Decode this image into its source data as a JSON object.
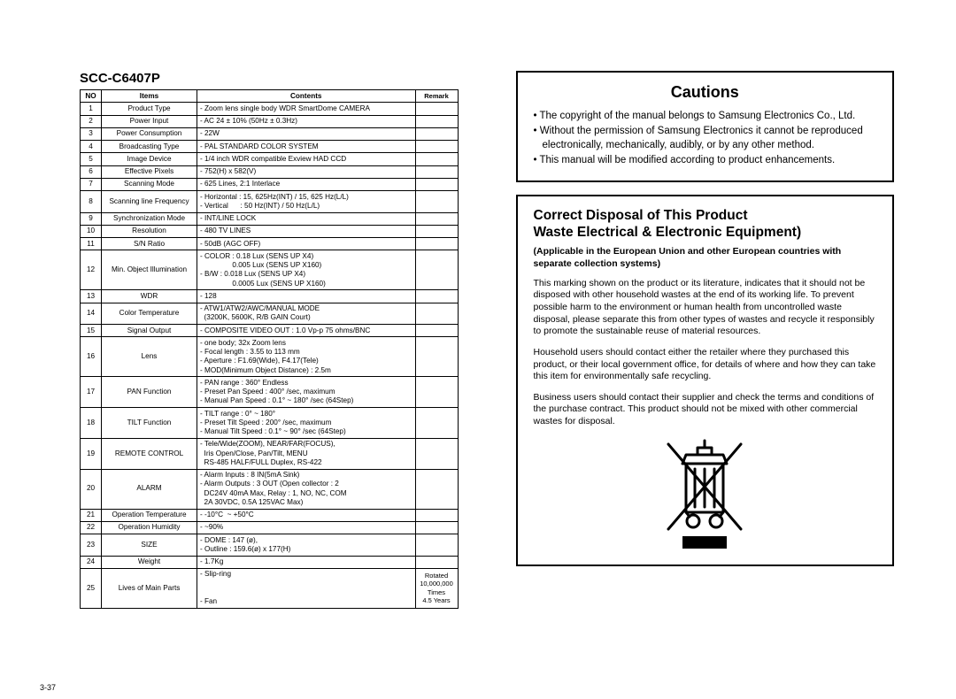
{
  "left": {
    "model": "SCC-C6407P",
    "pageNum": "3-37",
    "headers": {
      "no": "NO",
      "items": "Items",
      "contents": "Contents",
      "remark": "Remark"
    },
    "rows": [
      {
        "no": "1",
        "item": "Product Type",
        "content": "- Zoom lens single body WDR SmartDome CAMERA",
        "remark": ""
      },
      {
        "no": "2",
        "item": "Power Input",
        "content": "- AC 24 ± 10% (50Hz ± 0.3Hz)",
        "remark": ""
      },
      {
        "no": "3",
        "item": "Power Consumption",
        "content": "- 22W",
        "remark": ""
      },
      {
        "no": "4",
        "item": "Broadcasting Type",
        "content": "- PAL STANDARD COLOR SYSTEM",
        "remark": ""
      },
      {
        "no": "5",
        "item": "Image Device",
        "content": "- 1/4 inch WDR compatible Exview HAD CCD",
        "remark": ""
      },
      {
        "no": "6",
        "item": "Effective Pixels",
        "content": "- 752(H) x 582(V)",
        "remark": ""
      },
      {
        "no": "7",
        "item": "Scanning Mode",
        "content": "- 625 Lines, 2:1 Interlace",
        "remark": ""
      },
      {
        "no": "8",
        "item": "Scanning line Frequency",
        "content": "- Horizontal : 15, 625Hz(INT) / 15, 625 Hz(L/L)\n- Vertical      : 50 Hz(INT) / 50 Hz(L/L)",
        "remark": ""
      },
      {
        "no": "9",
        "item": "Synchronization Mode",
        "content": "- INT/LINE LOCK",
        "remark": ""
      },
      {
        "no": "10",
        "item": "Resolution",
        "content": "- 480 TV LINES",
        "remark": ""
      },
      {
        "no": "11",
        "item": "S/N Ratio",
        "content": "- 50dB (AGC OFF)",
        "remark": ""
      },
      {
        "no": "12",
        "item": "Min. Object Illumination",
        "content": "- COLOR : 0.18 Lux (SENS UP X4)\n                0.005 Lux (SENS UP X160)\n- B/W : 0.018 Lux (SENS UP X4)\n                0.0005 Lux (SENS UP X160)",
        "remark": ""
      },
      {
        "no": "13",
        "item": "WDR",
        "content": "- 128",
        "remark": ""
      },
      {
        "no": "14",
        "item": "Color Temperature",
        "content": "- ATW1/ATW2/AWC/MANUAL MODE\n  (3200K, 5600K, R/B GAIN Court)",
        "remark": ""
      },
      {
        "no": "15",
        "item": "Signal Output",
        "content": "- COMPOSITE VIDEO OUT : 1.0 Vp-p 75 ohms/BNC",
        "remark": ""
      },
      {
        "no": "16",
        "item": "Lens",
        "content": "- one body; 32x Zoom lens\n- Focal length : 3.55 to 113 mm\n- Aperture : F1.69(Wide), F4.17(Tele)\n- MOD(Minimum Object Distance) : 2.5m",
        "remark": ""
      },
      {
        "no": "17",
        "item": "PAN Function",
        "content": "- PAN range : 360° Endless\n- Preset Pan Speed : 400° /sec, maximum\n- Manual Pan Speed : 0.1° ~ 180° /sec (64Step)",
        "remark": ""
      },
      {
        "no": "18",
        "item": "TILT Function",
        "content": "- TILT range : 0° ~ 180°\n- Preset Tilt Speed : 200° /sec, maximum\n- Manual Tilt Speed : 0.1° ~ 90° /sec (64Step)",
        "remark": ""
      },
      {
        "no": "19",
        "item": "REMOTE CONTROL",
        "content": "- Tele/Wide(ZOOM), NEAR/FAR(FOCUS),\n  Iris Open/Close, Pan/Tilt, MENU\n  RS-485 HALF/FULL Duplex, RS-422",
        "remark": ""
      },
      {
        "no": "20",
        "item": "ALARM",
        "content": "- Alarm Inputs : 8 IN(5mA Sink)\n- Alarm Outputs : 3 OUT (Open collector : 2\n  DC24V 40mA Max, Relay : 1, NO, NC, COM\n  2A 30VDC, 0.5A 125VAC Max)",
        "remark": ""
      },
      {
        "no": "21",
        "item": "Operation Temperature",
        "content": "- -10°C  ~ +50°C",
        "remark": ""
      },
      {
        "no": "22",
        "item": "Operation Humidity",
        "content": "- ~90%",
        "remark": ""
      },
      {
        "no": "23",
        "item": "SIZE",
        "content": "- DOME : 147 (ø),\n- Outline : 159.6(ø) x 177(H)",
        "remark": ""
      },
      {
        "no": "24",
        "item": "Weight",
        "content": "- 1.7Kg",
        "remark": ""
      },
      {
        "no": "25",
        "item": "Lives of Main Parts",
        "content": "- Slip-ring\n\n\n- Fan",
        "remark": "Rotated 10,000,000 Times\n4.5 Years"
      }
    ]
  },
  "right": {
    "cautions": {
      "title": "Cautions",
      "items": [
        "• The copyright of the manual belongs to Samsung Electronics Co., Ltd.",
        "• Without the permission of Samsung Electronics it cannot be reproduced electronically, mechanically, audibly, or by any other method.",
        "• This manual will be modified according to product enhancements."
      ]
    },
    "disposal": {
      "title": "Correct Disposal of This Product\nWaste Electrical & Electronic Equipment)",
      "sub": "(Applicable in the European Union and other European countries with separate collection systems)",
      "p1": "This marking shown on the product or its literature, indicates that it should not be disposed with other household wastes at the end of its working life. To prevent possible harm to the environment or human health from uncontrolled waste disposal, please separate this from other types of wastes and recycle it responsibly to promote the sustainable reuse of material resources.",
      "p2": "Household users should contact either the retailer where they purchased this product, or their local government office, for details of where and how they can take this item for environmentally safe recycling.",
      "p3": "Business users should contact their supplier and check the terms and conditions of the purchase contract. This product should not be mixed with other commercial wastes for disposal."
    }
  }
}
